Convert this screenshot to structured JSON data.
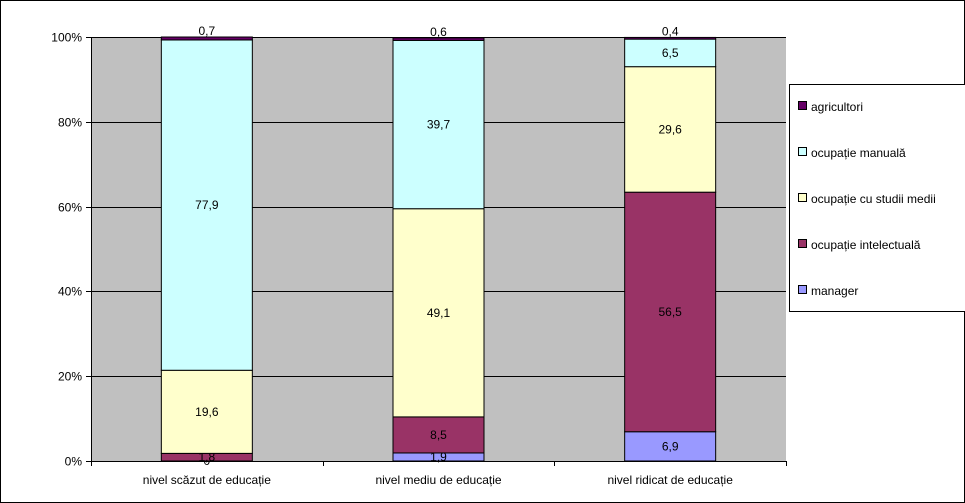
{
  "chart_data": {
    "type": "stacked-bar-100",
    "categories": [
      "nivel scăzut de educație",
      "nivel mediu de educație",
      "nivel ridicat de educație"
    ],
    "yticks": [
      "0%",
      "20%",
      "40%",
      "60%",
      "80%",
      "100%"
    ],
    "ylim": [
      0,
      100
    ],
    "grid": true,
    "legend_position": "right",
    "plot_background": "#C0C0C0",
    "series": [
      {
        "name": "manager",
        "color": "#9999FF",
        "values": [
          0,
          1.9,
          6.9
        ],
        "labels": [
          "0",
          "1,9",
          "6,9"
        ]
      },
      {
        "name": "ocupație intelectuală",
        "color": "#993366",
        "values": [
          1.8,
          8.5,
          56.5
        ],
        "labels": [
          "1,8",
          "8,5",
          "56,5"
        ]
      },
      {
        "name": "ocupație cu studii medii",
        "color": "#FFFFCC",
        "values": [
          19.6,
          49.1,
          29.6
        ],
        "labels": [
          "19,6",
          "49,1",
          "29,6"
        ]
      },
      {
        "name": "ocupație manuală",
        "color": "#CCFFFF",
        "values": [
          77.9,
          39.7,
          6.5
        ],
        "labels": [
          "77,9",
          "39,7",
          "6,5"
        ]
      },
      {
        "name": "agricultori",
        "color": "#660066",
        "values": [
          0.7,
          0.6,
          0.4
        ],
        "labels": [
          "0,7",
          "0,6",
          "0,4"
        ]
      }
    ],
    "legend_order": [
      "agricultori",
      "ocupație manuală",
      "ocupație cu studii medii",
      "ocupație intelectuală",
      "manager"
    ]
  }
}
